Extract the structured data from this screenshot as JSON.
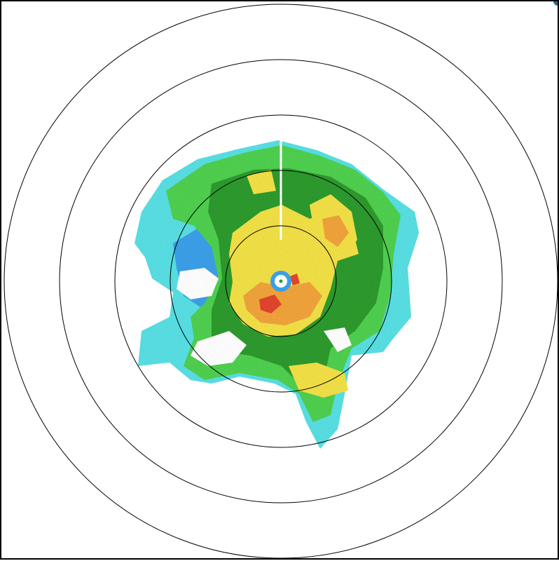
{
  "radar": {
    "range_rings_count": 5,
    "ring_color": "#000000",
    "background": "#ffffff",
    "echo_palette": {
      "light_cyan": "#58dfe3",
      "blue": "#3a9fe8",
      "light_green": "#4fcf4f",
      "dark_green": "#2d9a2d",
      "yellow": "#f2e046",
      "orange": "#f0a33a",
      "red": "#e2452d"
    },
    "icons": [
      "radar-site-marker-icon"
    ]
  }
}
